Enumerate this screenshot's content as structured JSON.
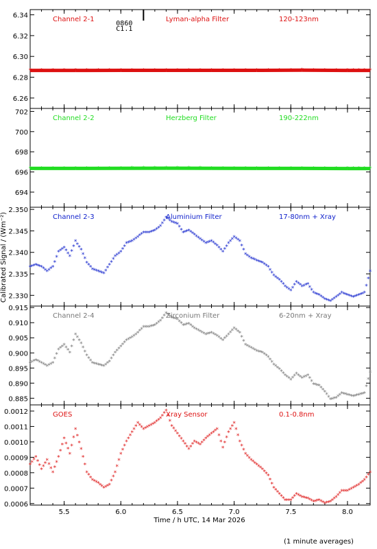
{
  "figure": {
    "ylabel": "Calibrated Signal / (Wm⁻²)",
    "xlabel": "Time / h UTC, 14 Mar 2026",
    "footer": "(1 minute averages)",
    "event_marker": {
      "time": 6.2,
      "label_top": "0860",
      "label_bottom": "C1.1"
    }
  },
  "chart_data": [
    {
      "type": "scatter",
      "channel": "Channel 2-1",
      "filter": "Lyman-alpha Filter",
      "band": "120-123nm",
      "color": "#dd1111",
      "ylim": [
        6.25,
        6.345
      ],
      "yticks": [
        6.26,
        6.28,
        6.3,
        6.32,
        6.34
      ],
      "ytick_labels": [
        "6.26",
        "6.28",
        "6.30",
        "6.32",
        "6.34"
      ],
      "series": [
        {
          "x": [
            5.2,
            5.6,
            6.0,
            6.4,
            6.8,
            7.2,
            7.6,
            8.0,
            8.2
          ],
          "y": [
            6.2865,
            6.2865,
            6.2866,
            6.2866,
            6.2866,
            6.2866,
            6.2868,
            6.2865,
            6.2865
          ]
        }
      ]
    },
    {
      "type": "scatter",
      "channel": "Channel 2-2",
      "filter": "Herzberg Filter",
      "band": "190-222nm",
      "color": "#22dd22",
      "ylim": [
        692.5,
        702.3
      ],
      "yticks": [
        694,
        696,
        698,
        700,
        702
      ],
      "ytick_labels": [
        "694",
        "696",
        "698",
        "700",
        "702"
      ],
      "series": [
        {
          "x": [
            5.2,
            5.6,
            6.0,
            6.4,
            6.8,
            7.2,
            7.6,
            8.0,
            8.2
          ],
          "y": [
            696.35,
            696.35,
            696.36,
            696.37,
            696.36,
            696.35,
            696.35,
            696.34,
            696.34
          ]
        }
      ]
    },
    {
      "type": "scatter",
      "channel": "Channel 2-3",
      "filter": "Aluminium Filter",
      "band": "17-80nm + Xray",
      "color": "#1122cc",
      "ylim": [
        2.3275,
        2.3505
      ],
      "yticks": [
        2.33,
        2.335,
        2.34,
        2.345,
        2.35
      ],
      "ytick_labels": [
        "2.330",
        "2.335",
        "2.340",
        "2.345",
        "2.350"
      ],
      "series": [
        {
          "x": [
            5.2,
            5.25,
            5.3,
            5.35,
            5.4,
            5.45,
            5.5,
            5.55,
            5.6,
            5.65,
            5.7,
            5.75,
            5.8,
            5.85,
            5.9,
            5.95,
            6.0,
            6.05,
            6.1,
            6.15,
            6.2,
            6.25,
            6.3,
            6.35,
            6.4,
            6.45,
            6.5,
            6.55,
            6.6,
            6.65,
            6.7,
            6.75,
            6.8,
            6.85,
            6.9,
            6.95,
            7.0,
            7.05,
            7.1,
            7.15,
            7.2,
            7.25,
            7.3,
            7.35,
            7.4,
            7.45,
            7.5,
            7.55,
            7.6,
            7.65,
            7.7,
            7.75,
            7.8,
            7.85,
            7.9,
            7.95,
            8.0,
            8.05,
            8.1,
            8.15,
            8.2
          ],
          "y": [
            2.3365,
            2.337,
            2.3365,
            2.3355,
            2.3365,
            2.34,
            2.341,
            2.339,
            2.3425,
            2.3405,
            2.3375,
            2.336,
            2.3355,
            2.335,
            2.337,
            2.339,
            2.34,
            2.342,
            2.3425,
            2.3435,
            2.3445,
            2.3445,
            2.345,
            2.346,
            2.348,
            2.347,
            2.3465,
            2.3445,
            2.345,
            2.344,
            2.343,
            2.342,
            2.3425,
            2.3415,
            2.34,
            2.342,
            2.3435,
            2.3425,
            2.3395,
            2.3385,
            2.338,
            2.3375,
            2.3365,
            2.3345,
            2.3335,
            2.332,
            2.331,
            2.333,
            2.332,
            2.3325,
            2.3305,
            2.33,
            2.329,
            2.3285,
            2.3295,
            2.3305,
            2.33,
            2.3295,
            2.33,
            2.3305,
            2.3355
          ]
        }
      ]
    },
    {
      "type": "scatter",
      "channel": "Channel 2-4",
      "filter": "Zirconium Filter",
      "band": "6-20nm + Xray",
      "color": "#777777",
      "ylim": [
        0.8828,
        0.9155
      ],
      "yticks": [
        0.885,
        0.89,
        0.895,
        0.9,
        0.905,
        0.91,
        0.915
      ],
      "ytick_labels": [
        "0.885",
        "0.890",
        "0.895",
        "0.900",
        "0.905",
        "0.910",
        "0.915"
      ],
      "series": [
        {
          "x": [
            5.2,
            5.25,
            5.3,
            5.35,
            5.4,
            5.45,
            5.5,
            5.55,
            5.6,
            5.65,
            5.7,
            5.75,
            5.8,
            5.85,
            5.9,
            5.95,
            6.0,
            6.05,
            6.1,
            6.15,
            6.2,
            6.25,
            6.3,
            6.35,
            6.4,
            6.45,
            6.5,
            6.55,
            6.6,
            6.65,
            6.7,
            6.75,
            6.8,
            6.85,
            6.9,
            6.95,
            7.0,
            7.05,
            7.1,
            7.15,
            7.2,
            7.25,
            7.3,
            7.35,
            7.4,
            7.45,
            7.5,
            7.55,
            7.6,
            7.65,
            7.7,
            7.75,
            7.8,
            7.85,
            7.9,
            7.95,
            8.0,
            8.05,
            8.1,
            8.15,
            8.2
          ],
          "y": [
            0.8965,
            0.8975,
            0.8965,
            0.8955,
            0.8965,
            0.901,
            0.9025,
            0.9,
            0.906,
            0.903,
            0.899,
            0.8965,
            0.896,
            0.8955,
            0.897,
            0.9,
            0.902,
            0.904,
            0.905,
            0.9065,
            0.9085,
            0.9085,
            0.909,
            0.9105,
            0.913,
            0.9115,
            0.911,
            0.909,
            0.9095,
            0.908,
            0.907,
            0.906,
            0.9065,
            0.9055,
            0.904,
            0.906,
            0.908,
            0.9065,
            0.9025,
            0.9015,
            0.9005,
            0.9,
            0.8985,
            0.896,
            0.8945,
            0.8925,
            0.891,
            0.893,
            0.8915,
            0.8925,
            0.8895,
            0.889,
            0.887,
            0.8845,
            0.885,
            0.8865,
            0.886,
            0.8855,
            0.886,
            0.8865,
            0.8935
          ]
        }
      ]
    },
    {
      "type": "scatter",
      "channel": "GOES",
      "filter": "Xray Sensor",
      "band": "0.1-0.8nm",
      "color": "#dd1111",
      "ylim": [
        0.00059,
        0.00124
      ],
      "yticks": [
        0.0006,
        0.0007,
        0.0008,
        0.0009,
        0.001,
        0.0011,
        0.0012
      ],
      "ytick_labels": [
        "0.0006",
        "0.0007",
        "0.0008",
        "0.0009",
        "0.0010",
        "0.0011",
        "0.0012"
      ],
      "series": [
        {
          "x": [
            5.2,
            5.25,
            5.3,
            5.35,
            5.4,
            5.45,
            5.5,
            5.55,
            5.6,
            5.65,
            5.7,
            5.75,
            5.8,
            5.85,
            5.9,
            5.95,
            6.0,
            6.05,
            6.1,
            6.15,
            6.2,
            6.25,
            6.3,
            6.35,
            6.4,
            6.45,
            6.5,
            6.55,
            6.6,
            6.65,
            6.7,
            6.75,
            6.8,
            6.85,
            6.9,
            6.95,
            7.0,
            7.05,
            7.1,
            7.15,
            7.2,
            7.25,
            7.3,
            7.35,
            7.4,
            7.45,
            7.5,
            7.55,
            7.6,
            7.65,
            7.7,
            7.75,
            7.8,
            7.85,
            7.9,
            7.95,
            8.0,
            8.05,
            8.1,
            8.15,
            8.2
          ],
          "y": [
            0.00085,
            0.0009,
            0.00082,
            0.00088,
            0.0008,
            0.0009,
            0.00102,
            0.00092,
            0.00108,
            0.00095,
            0.0008,
            0.00075,
            0.00073,
            0.0007,
            0.00072,
            0.0008,
            0.00092,
            0.001,
            0.00106,
            0.00112,
            0.00108,
            0.0011,
            0.00112,
            0.00115,
            0.0012,
            0.0011,
            0.00105,
            0.001,
            0.00095,
            0.001,
            0.00098,
            0.00102,
            0.00105,
            0.00108,
            0.00096,
            0.00106,
            0.00112,
            0.001,
            0.00092,
            0.00088,
            0.00085,
            0.00082,
            0.00078,
            0.0007,
            0.00066,
            0.00062,
            0.00062,
            0.00066,
            0.00064,
            0.00063,
            0.00061,
            0.00062,
            0.0006,
            0.00061,
            0.00064,
            0.00068,
            0.00068,
            0.0007,
            0.00072,
            0.00075,
            0.0008
          ]
        }
      ]
    }
  ],
  "x_axis": {
    "xlim": [
      5.2,
      8.2
    ],
    "ticks": [
      5.5,
      6.0,
      6.5,
      7.0,
      7.5,
      8.0
    ],
    "tick_labels": [
      "5.5",
      "6.0",
      "6.5",
      "7.0",
      "7.5",
      "8.0"
    ]
  }
}
